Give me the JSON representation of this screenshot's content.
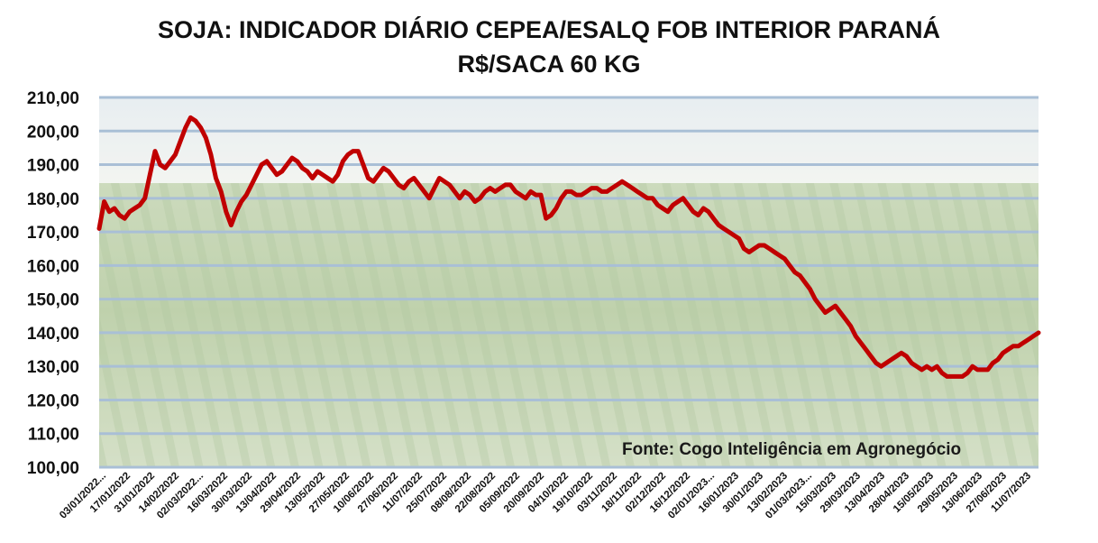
{
  "chart_data": {
    "type": "line",
    "title": "SOJA: INDICADOR DIÁRIO CEPEA/ESALQ FOB INTERIOR PARANÁ",
    "subtitle": "R$/SACA 60 KG",
    "source": "Fonte: Cogo Inteligência em Agronegócio",
    "ylim": [
      100,
      210
    ],
    "y_ticks": [
      "100,00",
      "110,00",
      "120,00",
      "130,00",
      "140,00",
      "150,00",
      "160,00",
      "170,00",
      "180,00",
      "190,00",
      "200,00",
      "210,00"
    ],
    "x_tick_labels": [
      "03/01/2022...",
      "17/01/2022",
      "31/01/2022",
      "14/02/2022",
      "02/03/2022...",
      "16/03/2022",
      "30/03/2022",
      "13/04/2022",
      "29/04/2022",
      "13/05/2022",
      "27/05/2022",
      "10/06/2022",
      "27/06/2022",
      "11/07/2022",
      "25/07/2022",
      "08/08/2022",
      "22/08/2022",
      "05/09/2022",
      "20/09/2022",
      "04/10/2022",
      "19/10/2022",
      "03/11/2022",
      "18/11/2022",
      "02/12/2022",
      "16/12/2022",
      "02/01/2023...",
      "16/01/2023",
      "30/01/2023",
      "13/02/2023",
      "01/03/2023...",
      "15/03/2023",
      "29/03/2023",
      "13/04/2023",
      "28/04/2023",
      "15/05/2023",
      "29/05/2023",
      "13/06/2023",
      "27/06/2023",
      "11/07/2023"
    ],
    "grid": true,
    "line_color": "#c00000",
    "background": "soybean field photo",
    "series": [
      {
        "values": [
          171,
          179,
          176,
          177,
          175,
          174,
          176,
          177,
          178,
          180,
          187,
          194,
          190,
          189,
          191,
          193,
          197,
          201,
          204,
          203,
          201,
          198,
          193,
          186,
          182,
          176,
          172,
          176,
          179,
          181,
          184,
          187,
          190,
          191,
          189,
          187,
          188,
          190,
          192,
          191,
          189,
          188,
          186,
          188,
          187,
          186,
          185,
          187,
          191,
          193,
          194,
          194,
          190,
          186,
          185,
          187,
          189,
          188,
          186,
          184,
          183,
          185,
          186,
          184,
          182,
          180,
          183,
          186,
          185,
          184,
          182,
          180,
          182,
          181,
          179,
          180,
          182,
          183,
          182,
          183,
          184,
          184,
          182,
          181,
          180,
          182,
          181,
          181,
          174,
          175,
          177,
          180,
          182,
          182,
          181,
          181,
          182,
          183,
          183,
          182,
          182,
          183,
          184,
          185,
          184,
          183,
          182,
          181,
          180,
          180,
          178,
          177,
          176,
          178,
          179,
          180,
          178,
          176,
          175,
          177,
          176,
          174,
          172,
          171,
          170,
          169,
          168,
          165,
          164,
          165,
          166,
          166,
          165,
          164,
          163,
          162,
          160,
          158,
          157,
          155,
          153,
          150,
          148,
          146,
          147,
          148,
          146,
          144,
          142,
          139,
          137,
          135,
          133,
          131,
          130,
          131,
          132,
          133,
          134,
          133,
          131,
          130,
          129,
          130,
          129,
          130,
          128,
          127,
          127,
          127,
          127,
          128,
          130,
          129,
          129,
          129,
          131,
          132,
          134,
          135,
          136,
          136,
          137,
          138,
          139,
          140
        ]
      }
    ]
  }
}
